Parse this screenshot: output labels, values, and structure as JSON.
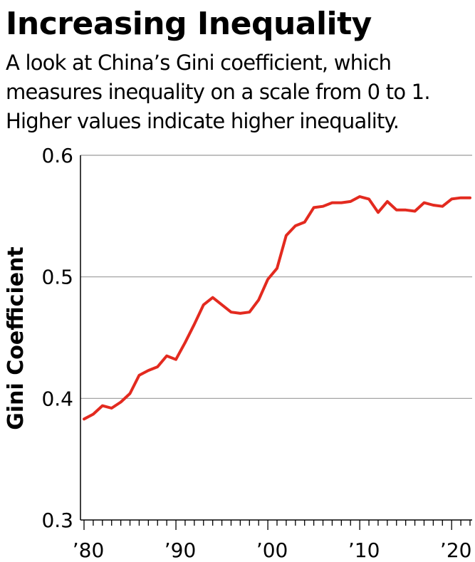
{
  "title": "Increasing Inequality",
  "subtitle_lines": [
    "A look at China’s Gini coefficient, which",
    "measures inequality on a scale from 0 to 1.",
    "Higher values indicate higher inequality."
  ],
  "colors": {
    "line": "#e32a1f",
    "grid": "#9a9a9a",
    "axis": "#000000"
  },
  "chart_data": {
    "type": "line",
    "title": "Increasing Inequality",
    "subtitle": "A look at China’s Gini coefficient, which measures inequality on a scale from 0 to 1. Higher values indicate higher inequality.",
    "xlabel": "",
    "ylabel": "Gini Coefficient",
    "xlim": [
      1980,
      2022
    ],
    "ylim": [
      0.3,
      0.6
    ],
    "yticks": [
      0.3,
      0.4,
      0.5,
      0.6
    ],
    "ytick_labels": [
      "0.3",
      "0.4",
      "0.5",
      "0.6"
    ],
    "xticks": [
      1980,
      1990,
      2000,
      2010,
      2020
    ],
    "xtick_labels": [
      "’80",
      "’90",
      "’00",
      "’10",
      "’20"
    ],
    "grid": "horizontal",
    "series": [
      {
        "x": [
          1980,
          1981,
          1982,
          1983,
          1984,
          1985,
          1986,
          1987,
          1988,
          1989,
          1990,
          1991,
          1992,
          1993,
          1994,
          1995,
          1996,
          1997,
          1998,
          1999,
          2000,
          2001,
          2002,
          2003,
          2004,
          2005,
          2006,
          2007,
          2008,
          2009,
          2010,
          2011,
          2012,
          2013,
          2014,
          2015,
          2016,
          2017,
          2018,
          2019,
          2020,
          2021,
          2022
        ],
        "values": [
          0.383,
          0.387,
          0.394,
          0.392,
          0.397,
          0.404,
          0.419,
          0.423,
          0.426,
          0.435,
          0.432,
          0.446,
          0.461,
          0.477,
          0.483,
          0.477,
          0.471,
          0.47,
          0.471,
          0.481,
          0.498,
          0.507,
          0.534,
          0.542,
          0.545,
          0.557,
          0.558,
          0.561,
          0.561,
          0.562,
          0.566,
          0.564,
          0.553,
          0.562,
          0.555,
          0.555,
          0.554,
          0.561,
          0.559,
          0.558,
          0.564,
          0.565,
          0.565
        ]
      }
    ]
  }
}
